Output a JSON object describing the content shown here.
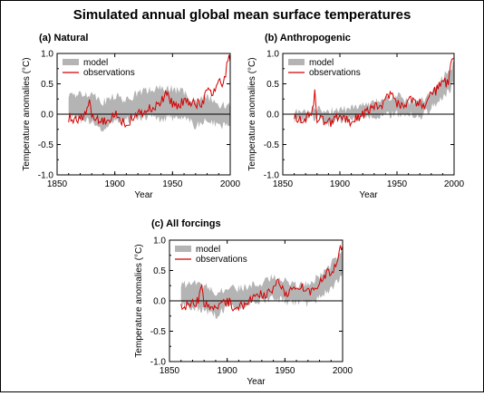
{
  "figure": {
    "title": "Simulated annual global mean surface temperatures"
  },
  "colors": {
    "model": "#b4b4b4",
    "observations": "#d40000",
    "zero_line": "#000000"
  },
  "chart_data": [
    {
      "type": "area",
      "id": "natural",
      "title": "(a) Natural",
      "xlabel": "Year",
      "ylabel": "Temperature anomalies (°C)",
      "xlim": [
        1850,
        2000
      ],
      "ylim": [
        -1.0,
        1.0
      ],
      "xticks": [
        1850,
        1900,
        1950,
        2000
      ],
      "yticks": [
        -1.0,
        -0.5,
        0.0,
        0.5,
        1.0
      ],
      "grid": false,
      "legend_position": "top-left",
      "series": [
        {
          "name": "model",
          "kind": "band",
          "x": [
            1860,
            1870,
            1880,
            1890,
            1900,
            1910,
            1920,
            1930,
            1940,
            1950,
            1960,
            1970,
            1980,
            1990,
            2000
          ],
          "low": [
            -0.02,
            -0.1,
            -0.12,
            -0.28,
            -0.1,
            -0.1,
            -0.06,
            -0.05,
            -0.08,
            -0.05,
            -0.05,
            -0.2,
            -0.1,
            -0.2,
            -0.15
          ],
          "high": [
            0.3,
            0.32,
            0.35,
            0.2,
            0.3,
            0.22,
            0.35,
            0.4,
            0.42,
            0.42,
            0.36,
            0.2,
            0.3,
            0.15,
            0.15
          ]
        },
        {
          "name": "observations",
          "kind": "line",
          "x": [
            1860,
            1865,
            1870,
            1875,
            1878,
            1880,
            1885,
            1890,
            1895,
            1900,
            1905,
            1910,
            1915,
            1920,
            1925,
            1930,
            1935,
            1940,
            1944,
            1950,
            1955,
            1960,
            1965,
            1970,
            1975,
            1980,
            1985,
            1990,
            1995,
            1998,
            2000
          ],
          "y": [
            -0.05,
            -0.08,
            -0.05,
            -0.02,
            0.32,
            -0.05,
            -0.1,
            -0.15,
            -0.1,
            0.0,
            -0.1,
            -0.15,
            -0.05,
            0.0,
            0.05,
            0.12,
            0.1,
            0.22,
            0.35,
            0.15,
            0.15,
            0.22,
            0.2,
            0.2,
            0.15,
            0.35,
            0.4,
            0.5,
            0.55,
            0.95,
            0.85
          ]
        }
      ]
    },
    {
      "type": "area",
      "id": "anthropogenic",
      "title": "(b) Anthropogenic",
      "xlabel": "Year",
      "ylabel": "Temperature anomalies (°C)",
      "xlim": [
        1850,
        2000
      ],
      "ylim": [
        -1.0,
        1.0
      ],
      "xticks": [
        1850,
        1900,
        1950,
        2000
      ],
      "yticks": [
        -1.0,
        -0.5,
        0.0,
        0.5,
        1.0
      ],
      "grid": false,
      "legend_position": "top-left",
      "series": [
        {
          "name": "model",
          "kind": "band",
          "x": [
            1860,
            1870,
            1880,
            1890,
            1900,
            1910,
            1920,
            1930,
            1940,
            1950,
            1960,
            1970,
            1980,
            1990,
            2000
          ],
          "low": [
            -0.1,
            -0.08,
            -0.05,
            -0.15,
            -0.1,
            -0.08,
            -0.05,
            -0.05,
            0.0,
            0.0,
            -0.02,
            -0.05,
            0.1,
            0.25,
            0.5
          ],
          "high": [
            0.05,
            0.05,
            0.1,
            0.05,
            0.08,
            0.1,
            0.15,
            0.2,
            0.25,
            0.3,
            0.22,
            0.2,
            0.35,
            0.6,
            0.85
          ]
        },
        {
          "name": "observations",
          "kind": "line",
          "x": [
            1860,
            1865,
            1870,
            1875,
            1878,
            1880,
            1885,
            1890,
            1895,
            1900,
            1905,
            1910,
            1915,
            1920,
            1925,
            1930,
            1935,
            1940,
            1944,
            1950,
            1955,
            1960,
            1965,
            1970,
            1975,
            1980,
            1985,
            1990,
            1995,
            1998,
            2000
          ],
          "y": [
            -0.05,
            -0.08,
            -0.05,
            -0.02,
            0.32,
            -0.05,
            -0.1,
            -0.15,
            -0.1,
            0.0,
            -0.1,
            -0.15,
            -0.05,
            0.0,
            0.05,
            0.12,
            0.1,
            0.22,
            0.35,
            0.15,
            0.15,
            0.22,
            0.2,
            0.2,
            0.15,
            0.35,
            0.4,
            0.5,
            0.55,
            0.95,
            0.85
          ]
        }
      ]
    },
    {
      "type": "area",
      "id": "all-forcings",
      "title": "(c) All forcings",
      "xlabel": "Year",
      "ylabel": "Temperature anomalies (°C)",
      "xlim": [
        1850,
        2000
      ],
      "ylim": [
        -1.0,
        1.0
      ],
      "xticks": [
        1850,
        1900,
        1950,
        2000
      ],
      "yticks": [
        -1.0,
        -0.5,
        0.0,
        0.5,
        1.0
      ],
      "grid": false,
      "legend_position": "top-left",
      "series": [
        {
          "name": "model",
          "kind": "band",
          "x": [
            1860,
            1870,
            1880,
            1890,
            1900,
            1910,
            1920,
            1930,
            1940,
            1950,
            1960,
            1970,
            1980,
            1990,
            2000
          ],
          "low": [
            -0.05,
            -0.1,
            -0.15,
            -0.25,
            -0.1,
            -0.1,
            -0.05,
            0.0,
            0.05,
            0.0,
            -0.05,
            -0.05,
            0.05,
            0.2,
            0.45
          ],
          "high": [
            0.25,
            0.3,
            0.25,
            0.15,
            0.2,
            0.2,
            0.25,
            0.3,
            0.4,
            0.35,
            0.25,
            0.3,
            0.4,
            0.6,
            0.9
          ]
        },
        {
          "name": "observations",
          "kind": "line",
          "x": [
            1860,
            1865,
            1870,
            1875,
            1878,
            1880,
            1885,
            1890,
            1895,
            1900,
            1905,
            1910,
            1915,
            1920,
            1925,
            1930,
            1935,
            1940,
            1944,
            1950,
            1955,
            1960,
            1965,
            1970,
            1975,
            1980,
            1985,
            1990,
            1995,
            1998,
            2000
          ],
          "y": [
            -0.05,
            -0.08,
            -0.05,
            -0.02,
            0.32,
            -0.05,
            -0.1,
            -0.15,
            -0.1,
            0.0,
            -0.1,
            -0.15,
            -0.05,
            0.0,
            0.05,
            0.12,
            0.1,
            0.22,
            0.35,
            0.15,
            0.15,
            0.22,
            0.2,
            0.2,
            0.15,
            0.35,
            0.4,
            0.5,
            0.55,
            0.95,
            0.85
          ]
        }
      ]
    }
  ]
}
